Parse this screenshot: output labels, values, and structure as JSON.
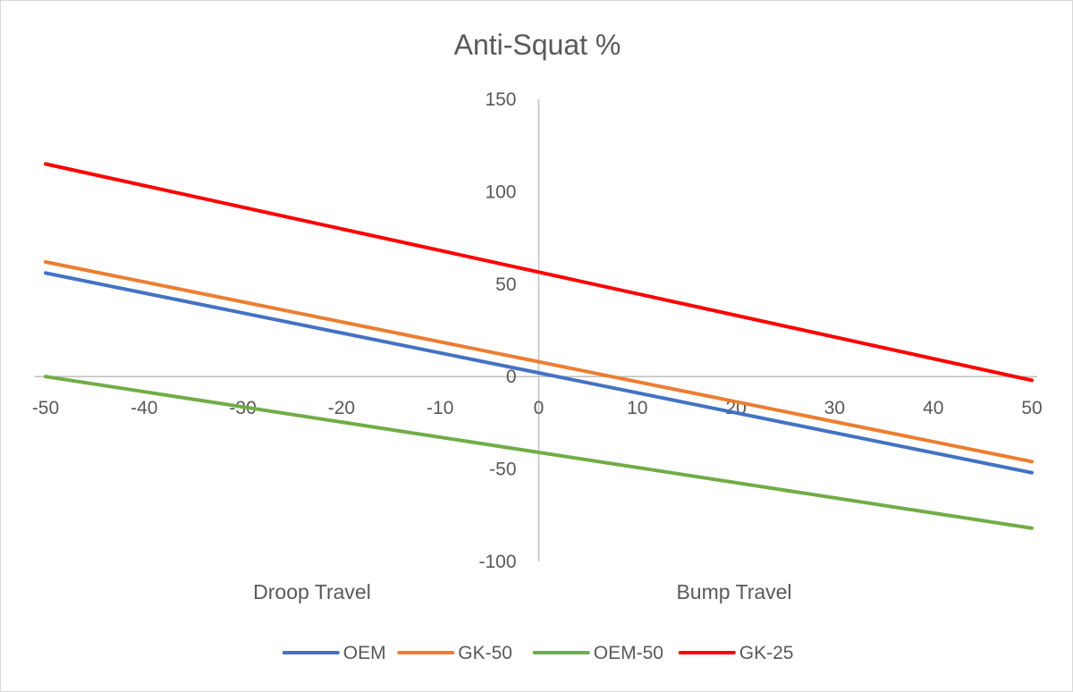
{
  "chart_data": {
    "type": "line",
    "title": "Anti-Squat %",
    "xlim": [
      -50,
      50
    ],
    "ylim": [
      -100,
      150
    ],
    "x_ticks": [
      -50,
      -40,
      -30,
      -20,
      -10,
      0,
      10,
      20,
      30,
      40,
      50
    ],
    "y_ticks": [
      -100,
      -50,
      0,
      50,
      100,
      150
    ],
    "annotations": {
      "left": "Droop Travel",
      "right": "Bump Travel"
    },
    "legend_position": "bottom",
    "grid": false,
    "series": [
      {
        "name": "OEM",
        "color": "#4472C4",
        "x": [
          -50,
          50
        ],
        "y": [
          56,
          -52
        ]
      },
      {
        "name": "GK-50",
        "color": "#ED7D31",
        "x": [
          -50,
          50
        ],
        "y": [
          62,
          -46
        ]
      },
      {
        "name": "OEM-50",
        "color": "#70AD47",
        "x": [
          -50,
          50
        ],
        "y": [
          0,
          -82
        ]
      },
      {
        "name": "GK-25",
        "color": "#FF0000",
        "x": [
          -50,
          50
        ],
        "y": [
          115,
          -2
        ]
      }
    ]
  }
}
